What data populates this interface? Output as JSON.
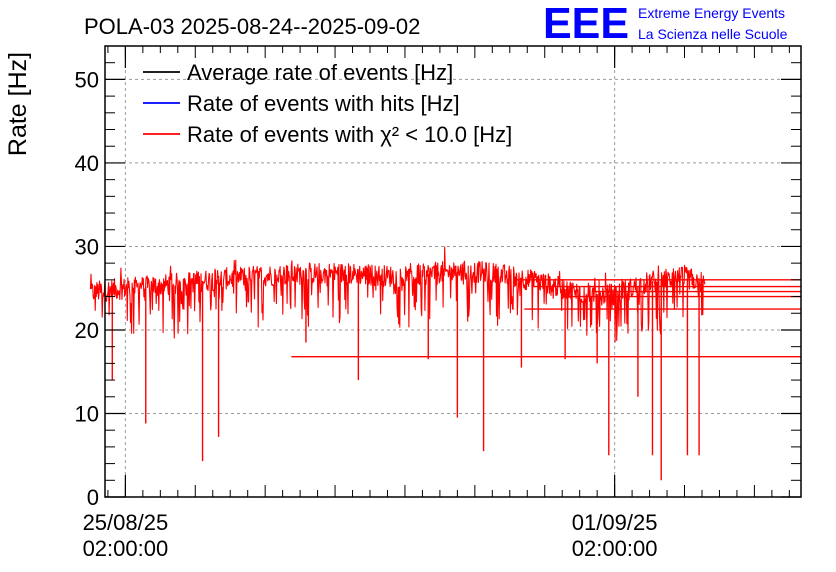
{
  "chart_data": {
    "type": "line",
    "title": "POLA-03 2025-08-24--2025-09-02",
    "ylabel": "Rate [Hz]",
    "xlabel": "",
    "ylim": [
      0,
      54
    ],
    "xlim": [
      "2025-08-24T19:00:00",
      "2025-09-03T18:00:00"
    ],
    "yticks": [
      0,
      10,
      20,
      30,
      40,
      50
    ],
    "xticks": [
      {
        "date": "2025-08-25T02:00:00",
        "label_date": "25/08/25",
        "label_time": "02:00:00"
      },
      {
        "date": "2025-09-01T02:00:00",
        "label_date": "01/09/25",
        "label_time": "02:00:00"
      }
    ],
    "grid": true,
    "legend_position": "top-left",
    "data_start": "2025-08-24T14:00:00",
    "data_end": "2025-09-02T09:00:00",
    "series": [
      {
        "name": "Average rate of events [Hz]",
        "color": "#000000",
        "values": []
      },
      {
        "name": "Rate of events with hits [Hz]",
        "color": "#0000ff",
        "values": []
      },
      {
        "name": "Rate of events with χ² < 10.0 [Hz]",
        "color": "#ff0000",
        "x": [
          "2025-08-24T14:00:00",
          "2025-08-25T02:00:00",
          "2025-08-25T14:00:00",
          "2025-08-26T02:00:00",
          "2025-08-26T14:00:00",
          "2025-08-27T02:00:00",
          "2025-08-27T14:00:00",
          "2025-08-28T02:00:00",
          "2025-08-28T14:00:00",
          "2025-08-29T02:00:00",
          "2025-08-29T14:00:00",
          "2025-08-30T02:00:00",
          "2025-08-30T14:00:00",
          "2025-08-31T02:00:00",
          "2025-08-31T14:00:00",
          "2025-09-01T02:00:00",
          "2025-09-01T14:00:00",
          "2025-09-02T02:00:00",
          "2025-09-02T09:00:00"
        ],
        "values": [
          24.5,
          25.0,
          25.3,
          25.8,
          26.2,
          26.5,
          26.7,
          26.8,
          26.6,
          26.3,
          26.9,
          27.0,
          26.5,
          25.6,
          24.4,
          24.2,
          25.8,
          26.3,
          25.6
        ]
      }
    ],
    "dips": [
      {
        "x": "2025-08-24T21:30:00",
        "y": 14.0
      },
      {
        "x": "2025-08-25T09:00:00",
        "y": 8.8
      },
      {
        "x": "2025-08-26T04:30:00",
        "y": 4.3
      },
      {
        "x": "2025-08-26T10:00:00",
        "y": 7.2
      },
      {
        "x": "2025-08-27T16:00:00",
        "y": 18.5
      },
      {
        "x": "2025-08-28T10:00:00",
        "y": 14.0
      },
      {
        "x": "2025-08-29T10:00:00",
        "y": 16.5
      },
      {
        "x": "2025-08-29T20:00:00",
        "y": 9.5
      },
      {
        "x": "2025-08-30T05:00:00",
        "y": 5.5
      },
      {
        "x": "2025-08-30T18:00:00",
        "y": 15.5
      },
      {
        "x": "2025-08-31T09:00:00",
        "y": 16.5
      },
      {
        "x": "2025-08-31T20:00:00",
        "y": 16.0
      },
      {
        "x": "2025-09-01T00:00:00",
        "y": 5.0
      },
      {
        "x": "2025-09-01T10:00:00",
        "y": 12.0
      },
      {
        "x": "2025-09-01T15:00:00",
        "y": 5.0
      },
      {
        "x": "2025-09-01T18:00:00",
        "y": 2.0
      },
      {
        "x": "2025-09-02T03:00:00",
        "y": 5.0
      },
      {
        "x": "2025-09-02T07:00:00",
        "y": 5.0
      }
    ],
    "trailing_levels": [
      {
        "x_start": "2025-08-27T11:00:00",
        "y": 16.8
      },
      {
        "x_start": "2025-08-30T19:00:00",
        "y": 22.5
      },
      {
        "x_start": "2025-08-31T09:00:00",
        "y": 24.0
      },
      {
        "x_start": "2025-08-31T19:00:00",
        "y": 24.6
      },
      {
        "x_start": "2025-08-30T22:00:00",
        "y": 25.2
      },
      {
        "x_start": "2025-08-30T16:00:00",
        "y": 26.0
      }
    ]
  },
  "logo": {
    "mark": "EEE",
    "line1": "Extreme Energy Events",
    "line2": "La Scienza nelle Scuole",
    "color": "#0000ff"
  }
}
